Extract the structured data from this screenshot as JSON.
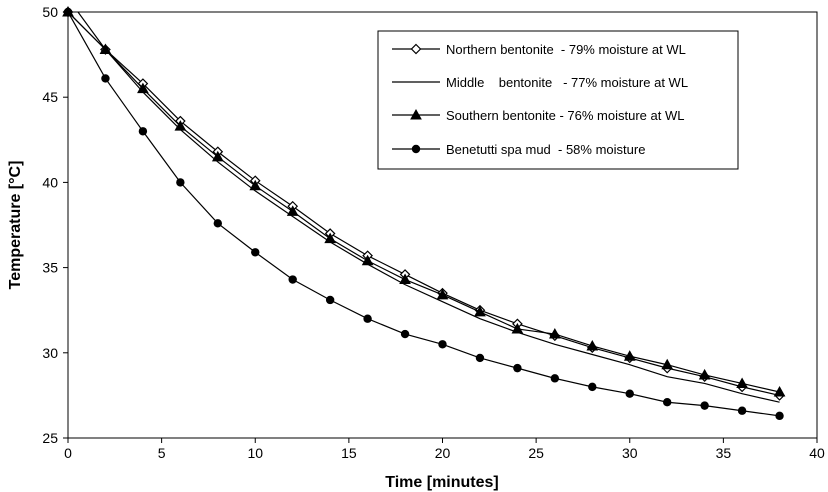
{
  "chart_data": {
    "type": "line",
    "xlabel": "Time [minutes]",
    "ylabel": "Temperature [°C]",
    "xlim": [
      0,
      40
    ],
    "ylim": [
      25,
      50
    ],
    "x_ticks": [
      0,
      5,
      10,
      15,
      20,
      25,
      30,
      35,
      40
    ],
    "y_ticks": [
      25,
      30,
      35,
      40,
      45,
      50
    ],
    "grid": "none",
    "legend_position": "top-right",
    "series": [
      {
        "name": "Northern bentonite  - 79% moisture at WL",
        "marker": "diamond-open",
        "x": [
          0,
          2,
          4,
          6,
          8,
          10,
          12,
          14,
          16,
          18,
          20,
          22,
          24,
          26,
          28,
          30,
          32,
          34,
          36,
          38
        ],
        "y": [
          50,
          47.8,
          45.8,
          43.6,
          41.8,
          40.1,
          38.6,
          37.0,
          35.7,
          34.6,
          33.5,
          32.5,
          31.7,
          31.0,
          30.3,
          29.7,
          29.1,
          28.6,
          28.0,
          27.5
        ]
      },
      {
        "name": "Middle    bentonite   - 77% moisture at WL",
        "marker": "none",
        "x": [
          0,
          2,
          4,
          6,
          8,
          10,
          12,
          14,
          16,
          18,
          20,
          22,
          24,
          26,
          28,
          30,
          32,
          34,
          36,
          38
        ],
        "y": [
          50.8,
          47.8,
          45.3,
          43.1,
          41.2,
          39.5,
          38.0,
          36.5,
          35.2,
          34.0,
          33.0,
          32.0,
          31.2,
          30.5,
          29.9,
          29.3,
          28.6,
          28.2,
          27.6,
          27.1
        ]
      },
      {
        "name": "Southern bentonite - 76% moisture at WL",
        "marker": "triangle",
        "x": [
          0,
          2,
          4,
          6,
          8,
          10,
          12,
          14,
          16,
          18,
          20,
          22,
          24,
          26,
          28,
          30,
          32,
          34,
          36,
          38
        ],
        "y": [
          50,
          47.8,
          45.5,
          43.3,
          41.5,
          39.8,
          38.3,
          36.7,
          35.4,
          34.3,
          33.4,
          32.4,
          31.4,
          31.1,
          30.4,
          29.8,
          29.3,
          28.7,
          28.2,
          27.7
        ]
      },
      {
        "name": "Benetutti spa mud  - 58% moisture",
        "marker": "circle",
        "x": [
          0,
          2,
          4,
          6,
          8,
          10,
          12,
          14,
          16,
          18,
          20,
          22,
          24,
          26,
          28,
          30,
          32,
          34,
          36,
          38
        ],
        "y": [
          50,
          46.1,
          43.0,
          40.0,
          37.6,
          35.9,
          34.3,
          33.1,
          32.0,
          31.1,
          30.5,
          29.7,
          29.1,
          28.5,
          28.0,
          27.6,
          27.1,
          26.9,
          26.6,
          26.3
        ]
      }
    ]
  }
}
